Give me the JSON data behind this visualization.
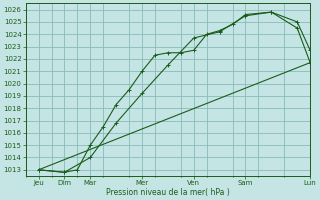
{
  "xlabel": "Pression niveau de la mer( hPa )",
  "bg_color": "#c5e5e5",
  "grid_color_major": "#88bbbb",
  "grid_color_minor": "#aad4d4",
  "line_color": "#1a5c1a",
  "ylim": [
    1012.5,
    1026.5
  ],
  "yticks": [
    1013,
    1014,
    1015,
    1016,
    1017,
    1018,
    1019,
    1020,
    1021,
    1022,
    1023,
    1024,
    1025,
    1026
  ],
  "xlim": [
    0,
    11
  ],
  "xtick_major_positions": [
    0.5,
    1.5,
    2.5,
    4.5,
    6.5,
    8.5,
    11.0
  ],
  "xtick_major_labels": [
    "Jeu",
    "Dim",
    "Mar",
    "Mer",
    "Ven",
    "Sam",
    "Lun"
  ],
  "xtick_minor_positions": [
    0,
    1,
    2,
    3,
    4,
    5,
    6,
    7,
    8,
    9,
    10,
    11
  ],
  "series1_x": [
    0.5,
    1.5,
    2.0,
    2.5,
    3.0,
    3.5,
    4.0,
    4.5,
    5.0,
    5.5,
    6.0,
    6.5,
    7.0,
    7.5,
    8.0,
    8.5,
    9.5,
    10.5,
    11.0
  ],
  "series1_y": [
    1013.0,
    1012.8,
    1013.0,
    1015.0,
    1016.5,
    1018.3,
    1019.5,
    1021.0,
    1022.3,
    1022.5,
    1022.5,
    1022.7,
    1024.0,
    1024.3,
    1024.8,
    1025.6,
    1025.8,
    1025.0,
    1022.7
  ],
  "series2_x": [
    0.5,
    1.5,
    2.5,
    3.5,
    4.5,
    5.5,
    6.5,
    7.5,
    8.5,
    9.5,
    10.5,
    11.0
  ],
  "series2_y": [
    1013.0,
    1012.8,
    1014.0,
    1016.8,
    1019.2,
    1021.5,
    1023.7,
    1024.2,
    1025.5,
    1025.8,
    1024.5,
    1021.7
  ],
  "series3_x": [
    0.5,
    11.0
  ],
  "series3_y": [
    1013.0,
    1021.7
  ]
}
